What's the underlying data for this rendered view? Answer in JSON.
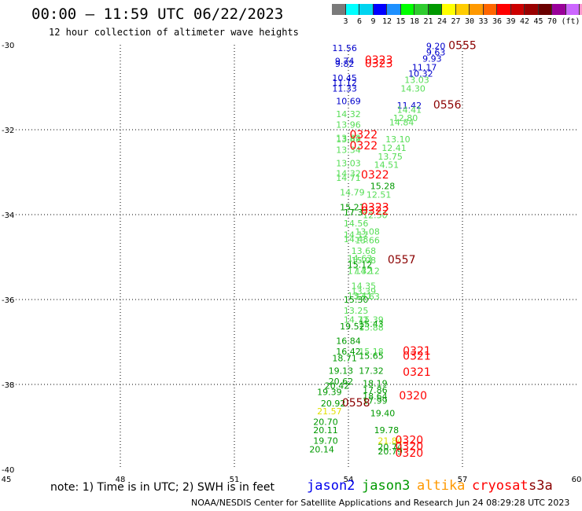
{
  "title": "00:00 – 11:59 UTC 06/22/2023",
  "subtitle": "12 hour collection of altimeter wave heights",
  "colorbar": {
    "swatches": [
      "#7a7a7a",
      "#00ffff",
      "#00d4f0",
      "#0000ff",
      "#1e90ff",
      "#00ff00",
      "#2ecc2e",
      "#009900",
      "#ffff00",
      "#ffcc00",
      "#ff9900",
      "#ff6600",
      "#ff0000",
      "#cc0000",
      "#990000",
      "#6a0000",
      "#990099",
      "#cc66ff",
      "#ff99cc",
      "#000000"
    ],
    "labels": [
      "3",
      "6",
      "9",
      "12",
      "15",
      "18",
      "21",
      "24",
      "27",
      "30",
      "33",
      "36",
      "39",
      "42",
      "45",
      "70"
    ],
    "unit": "(ft)"
  },
  "chart_data": {
    "type": "scatter",
    "x_ticks": [
      "45",
      "48",
      "51",
      "54",
      "57",
      "60"
    ],
    "y_ticks": [
      "-30",
      "-32",
      "-34",
      "-36",
      "-38",
      "-40"
    ],
    "xlim": [
      45,
      60
    ],
    "ylim": [
      -40,
      -30
    ],
    "grid": true,
    "observations": [
      {
        "lon": 53.9,
        "lat": -30.15,
        "v": "11.56",
        "c": "#0000cc"
      },
      {
        "lon": 53.9,
        "lat": -30.45,
        "v": "9.74",
        "c": "#0000cc"
      },
      {
        "lon": 53.9,
        "lat": -30.52,
        "v": "9.82",
        "c": "#0000cc"
      },
      {
        "lon": 53.9,
        "lat": -30.85,
        "v": "10.45",
        "c": "#0000cc"
      },
      {
        "lon": 53.9,
        "lat": -30.96,
        "v": "11.12",
        "c": "#0000cc"
      },
      {
        "lon": 53.9,
        "lat": -31.1,
        "v": "11.33",
        "c": "#0000cc"
      },
      {
        "lon": 54.0,
        "lat": -31.4,
        "v": "10.69",
        "c": "#0000cc"
      },
      {
        "lon": 54.0,
        "lat": -31.7,
        "v": "14.32",
        "c": "#55dd55"
      },
      {
        "lon": 54.0,
        "lat": -31.95,
        "v": "13.96",
        "c": "#55dd55"
      },
      {
        "lon": 54.0,
        "lat": -32.27,
        "v": "13.82",
        "c": "#55dd55"
      },
      {
        "lon": 54.0,
        "lat": -32.3,
        "v": "13.89",
        "c": "#55dd55"
      },
      {
        "lon": 54.0,
        "lat": -32.55,
        "v": "13.34",
        "c": "#55dd55"
      },
      {
        "lon": 54.0,
        "lat": -32.86,
        "v": "13.03",
        "c": "#55dd55"
      },
      {
        "lon": 54.0,
        "lat": -33.1,
        "v": "14.32",
        "c": "#55dd55"
      },
      {
        "lon": 54.0,
        "lat": -33.2,
        "v": "14.71",
        "c": "#55dd55"
      },
      {
        "lon": 54.1,
        "lat": -33.55,
        "v": "14.79",
        "c": "#55dd55"
      },
      {
        "lon": 54.1,
        "lat": -33.9,
        "v": "15.21",
        "c": "#009900"
      },
      {
        "lon": 54.2,
        "lat": -34.02,
        "v": "17.37",
        "c": "#009900"
      },
      {
        "lon": 54.2,
        "lat": -34.28,
        "v": "14.56",
        "c": "#55dd55"
      },
      {
        "lon": 54.2,
        "lat": -34.55,
        "v": "14.17",
        "c": "#55dd55"
      },
      {
        "lon": 54.2,
        "lat": -34.65,
        "v": "14.43",
        "c": "#55dd55"
      },
      {
        "lon": 54.5,
        "lat": -34.47,
        "v": "13.08",
        "c": "#55dd55"
      },
      {
        "lon": 54.5,
        "lat": -34.68,
        "v": "13.66",
        "c": "#55dd55"
      },
      {
        "lon": 54.4,
        "lat": -34.93,
        "v": "13.68",
        "c": "#55dd55"
      },
      {
        "lon": 54.3,
        "lat": -35.1,
        "v": "14.63",
        "c": "#55dd55"
      },
      {
        "lon": 54.4,
        "lat": -35.15,
        "v": "15.08",
        "c": "#55dd55"
      },
      {
        "lon": 54.3,
        "lat": -35.25,
        "v": "15.12",
        "c": "#009900"
      },
      {
        "lon": 54.3,
        "lat": -35.4,
        "v": "17.32",
        "c": "#55dd55"
      },
      {
        "lon": 54.5,
        "lat": -35.4,
        "v": "14.12",
        "c": "#55dd55"
      },
      {
        "lon": 54.4,
        "lat": -35.75,
        "v": "14.35",
        "c": "#55dd55"
      },
      {
        "lon": 54.4,
        "lat": -35.88,
        "v": "13.39",
        "c": "#55dd55"
      },
      {
        "lon": 54.3,
        "lat": -35.98,
        "v": "13.41",
        "c": "#55dd55"
      },
      {
        "lon": 54.5,
        "lat": -36.0,
        "v": "13.63",
        "c": "#55dd55"
      },
      {
        "lon": 54.2,
        "lat": -36.07,
        "v": "15.30",
        "c": "#009900"
      },
      {
        "lon": 54.2,
        "lat": -36.33,
        "v": "13.25",
        "c": "#55dd55"
      },
      {
        "lon": 54.2,
        "lat": -36.55,
        "v": "14.72",
        "c": "#55dd55"
      },
      {
        "lon": 54.6,
        "lat": -36.55,
        "v": "15.39",
        "c": "#55dd55"
      },
      {
        "lon": 54.6,
        "lat": -36.65,
        "v": "15.43",
        "c": "#009900"
      },
      {
        "lon": 54.6,
        "lat": -36.73,
        "v": "15.88",
        "c": "#55dd55"
      },
      {
        "lon": 54.1,
        "lat": -36.7,
        "v": "19.52",
        "c": "#009900"
      },
      {
        "lon": 54.0,
        "lat": -37.05,
        "v": "16.84",
        "c": "#009900"
      },
      {
        "lon": 54.0,
        "lat": -37.3,
        "v": "16.42",
        "c": "#009900"
      },
      {
        "lon": 54.6,
        "lat": -37.3,
        "v": "15.18",
        "c": "#55dd55"
      },
      {
        "lon": 54.6,
        "lat": -37.4,
        "v": "15.65",
        "c": "#009900"
      },
      {
        "lon": 53.9,
        "lat": -37.45,
        "v": "18.71",
        "c": "#009900"
      },
      {
        "lon": 53.8,
        "lat": -37.75,
        "v": "19.13",
        "c": "#009900"
      },
      {
        "lon": 54.6,
        "lat": -37.75,
        "v": "17.32",
        "c": "#009900"
      },
      {
        "lon": 53.8,
        "lat": -38.0,
        "v": "20.62",
        "c": "#009900"
      },
      {
        "lon": 53.7,
        "lat": -38.1,
        "v": "20.42",
        "c": "#009900"
      },
      {
        "lon": 54.7,
        "lat": -38.05,
        "v": "18.19",
        "c": "#009900"
      },
      {
        "lon": 54.7,
        "lat": -38.2,
        "v": "17.86",
        "c": "#009900"
      },
      {
        "lon": 53.5,
        "lat": -38.25,
        "v": "19.39",
        "c": "#009900"
      },
      {
        "lon": 54.7,
        "lat": -38.35,
        "v": "18.64",
        "c": "#009900"
      },
      {
        "lon": 54.7,
        "lat": -38.45,
        "v": "17.99",
        "c": "#009900"
      },
      {
        "lon": 53.6,
        "lat": -38.52,
        "v": "20.92",
        "c": "#009900"
      },
      {
        "lon": 53.5,
        "lat": -38.7,
        "v": "21.57",
        "c": "#e0e000"
      },
      {
        "lon": 54.9,
        "lat": -38.75,
        "v": "19.40",
        "c": "#009900"
      },
      {
        "lon": 53.4,
        "lat": -38.95,
        "v": "20.70",
        "c": "#009900"
      },
      {
        "lon": 53.4,
        "lat": -39.15,
        "v": "20.11",
        "c": "#009900"
      },
      {
        "lon": 55.0,
        "lat": -39.15,
        "v": "19.78",
        "c": "#009900"
      },
      {
        "lon": 53.4,
        "lat": -39.4,
        "v": "19.70",
        "c": "#009900"
      },
      {
        "lon": 55.1,
        "lat": -39.4,
        "v": "21.84",
        "c": "#e0e000"
      },
      {
        "lon": 55.1,
        "lat": -39.55,
        "v": "20.74",
        "c": "#009900"
      },
      {
        "lon": 53.3,
        "lat": -39.6,
        "v": "20.14",
        "c": "#009900"
      },
      {
        "lon": 55.1,
        "lat": -39.65,
        "v": "20.79",
        "c": "#009900"
      },
      {
        "lon": 56.3,
        "lat": -30.1,
        "v": "9.20",
        "c": "#0000cc"
      },
      {
        "lon": 56.3,
        "lat": -30.25,
        "v": "9.63",
        "c": "#0000cc"
      },
      {
        "lon": 56.2,
        "lat": -30.4,
        "v": "9.93",
        "c": "#0000cc"
      },
      {
        "lon": 56.0,
        "lat": -30.6,
        "v": "11.17",
        "c": "#0000cc"
      },
      {
        "lon": 55.9,
        "lat": -30.75,
        "v": "10.32",
        "c": "#0000cc"
      },
      {
        "lon": 55.8,
        "lat": -30.9,
        "v": "13.03",
        "c": "#55dd55"
      },
      {
        "lon": 55.7,
        "lat": -31.1,
        "v": "14.30",
        "c": "#55dd55"
      },
      {
        "lon": 55.6,
        "lat": -31.5,
        "v": "11.42",
        "c": "#0000cc"
      },
      {
        "lon": 55.6,
        "lat": -31.6,
        "v": "14.41",
        "c": "#55dd55"
      },
      {
        "lon": 55.5,
        "lat": -31.8,
        "v": "12.80",
        "c": "#55dd55"
      },
      {
        "lon": 55.4,
        "lat": -31.9,
        "v": "14.84",
        "c": "#55dd55"
      },
      {
        "lon": 55.3,
        "lat": -32.3,
        "v": "13.10",
        "c": "#55dd55"
      },
      {
        "lon": 55.2,
        "lat": -32.5,
        "v": "12.41",
        "c": "#55dd55"
      },
      {
        "lon": 55.1,
        "lat": -32.7,
        "v": "13.75",
        "c": "#55dd55"
      },
      {
        "lon": 55.0,
        "lat": -32.9,
        "v": "14.51",
        "c": "#55dd55"
      },
      {
        "lon": 54.9,
        "lat": -33.4,
        "v": "15.28",
        "c": "#009900"
      },
      {
        "lon": 54.8,
        "lat": -33.6,
        "v": "12.51",
        "c": "#55dd55"
      },
      {
        "lon": 54.7,
        "lat": -34.08,
        "v": "12.50",
        "c": "#55dd55"
      }
    ],
    "passes": [
      {
        "lon": 54.8,
        "lat": -30.44,
        "v": "0323",
        "c": "#ff0000"
      },
      {
        "lon": 54.8,
        "lat": -30.53,
        "v": "0323",
        "c": "#ff0000"
      },
      {
        "lon": 57.0,
        "lat": -30.1,
        "v": "0555",
        "c": "#8b0000"
      },
      {
        "lon": 56.6,
        "lat": -31.5,
        "v": "0556",
        "c": "#8b0000"
      },
      {
        "lon": 54.4,
        "lat": -32.2,
        "v": "0322",
        "c": "#ff0000"
      },
      {
        "lon": 54.4,
        "lat": -32.46,
        "v": "0322",
        "c": "#ff0000"
      },
      {
        "lon": 54.7,
        "lat": -33.15,
        "v": "0322",
        "c": "#ff0000"
      },
      {
        "lon": 54.7,
        "lat": -33.92,
        "v": "0323",
        "c": "#ff0000"
      },
      {
        "lon": 54.7,
        "lat": -34.0,
        "v": "0322",
        "c": "#ff0000"
      },
      {
        "lon": 55.4,
        "lat": -35.15,
        "v": "0557",
        "c": "#8b0000"
      },
      {
        "lon": 55.8,
        "lat": -37.3,
        "v": "0321",
        "c": "#ff0000"
      },
      {
        "lon": 55.8,
        "lat": -37.42,
        "v": "0321",
        "c": "#ff0000"
      },
      {
        "lon": 55.8,
        "lat": -37.8,
        "v": "0321",
        "c": "#ff0000"
      },
      {
        "lon": 55.7,
        "lat": -38.35,
        "v": "0320",
        "c": "#ff0000"
      },
      {
        "lon": 54.2,
        "lat": -38.52,
        "v": "0558",
        "c": "#8b0000"
      },
      {
        "lon": 55.6,
        "lat": -39.4,
        "v": "0320",
        "c": "#ff0000"
      },
      {
        "lon": 55.6,
        "lat": -39.55,
        "v": "0320",
        "c": "#ff0000"
      },
      {
        "lon": 55.6,
        "lat": -39.7,
        "v": "0320",
        "c": "#ff0000"
      }
    ]
  },
  "footer": {
    "note": "note: 1) Time is in UTC; 2) SWH is in feet",
    "satellites": [
      {
        "name": "jason2",
        "color": "#0000ee"
      },
      {
        "name": "jason3",
        "color": "#009900"
      },
      {
        "name": "altika",
        "color": "#ff9900"
      },
      {
        "name": "cryosat",
        "color": "#ff0000"
      },
      {
        "name": "s3a",
        "color": "#8b0000"
      }
    ],
    "credit": "NOAA/NESDIS Center for Satellite Applications and Research",
    "stamp": "Jun 24 08:29:28 UTC 2023"
  }
}
